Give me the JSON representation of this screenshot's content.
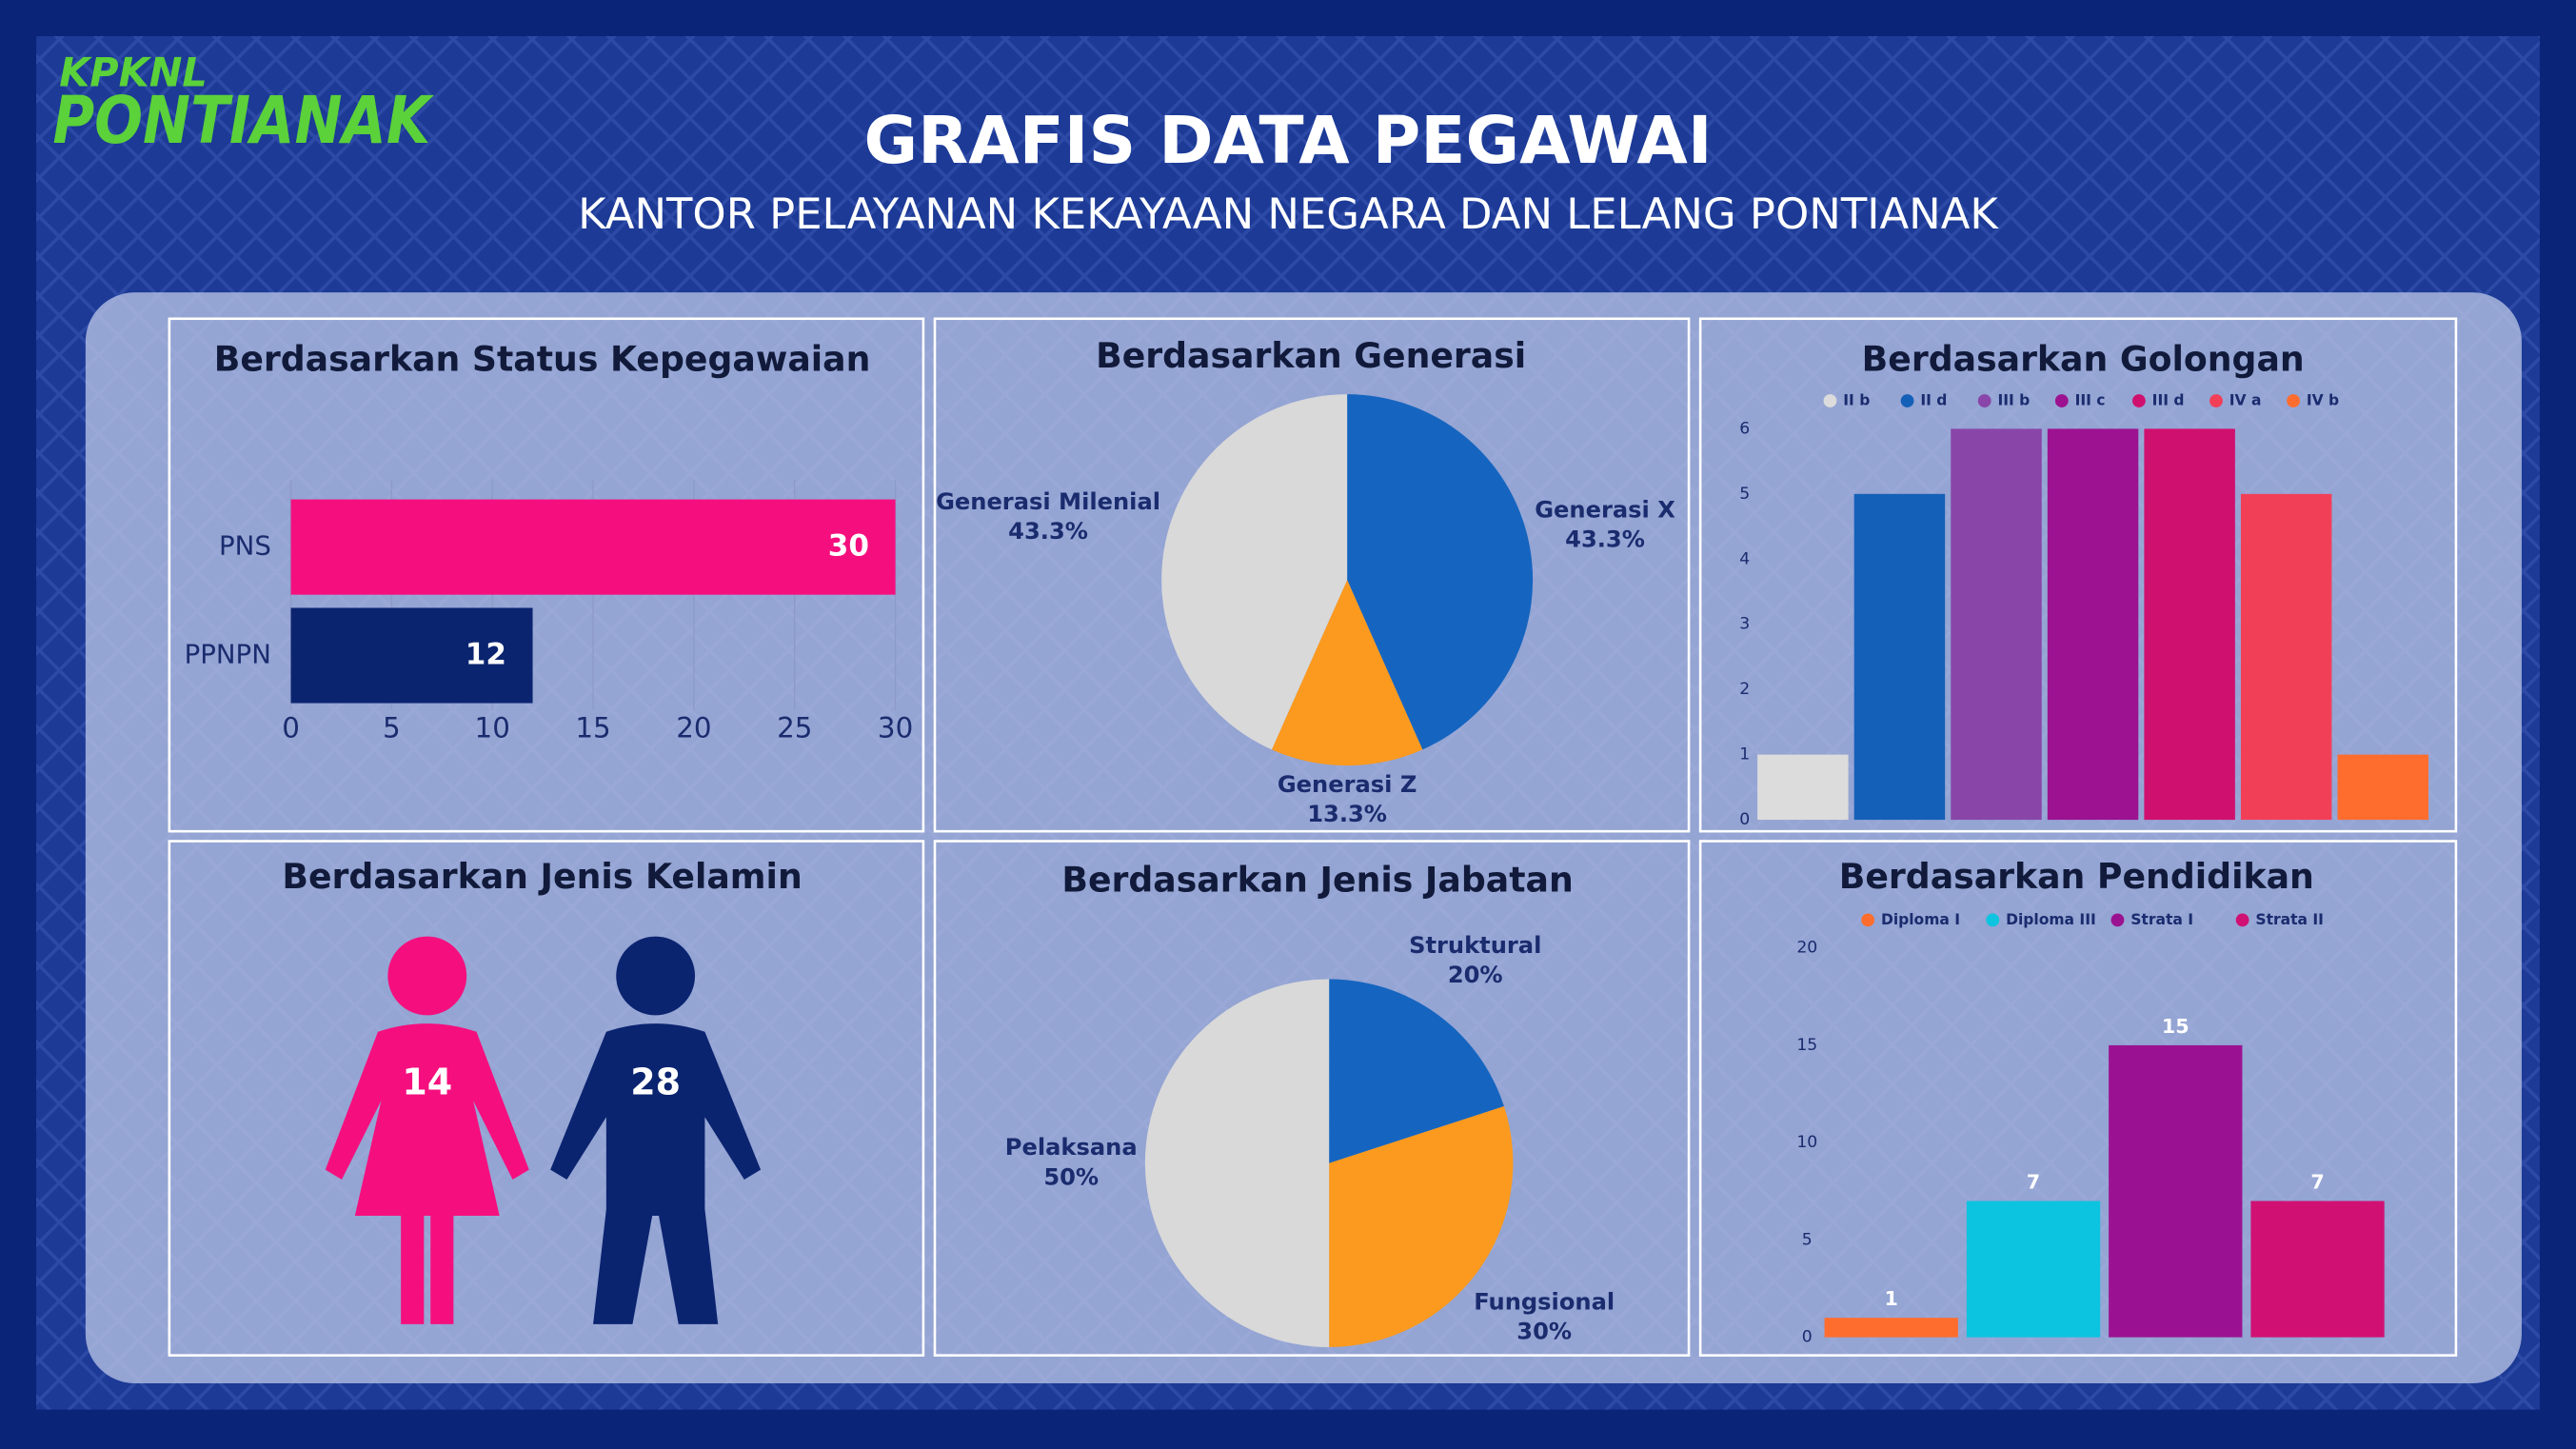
{
  "header": {
    "logo_top": "KPKNL",
    "logo_bottom": "PONTIANAK",
    "title": "GRAFIS DATA PEGAWAI",
    "subtitle": "KANTOR PELAYANAN KEKAYAAN NEGARA DAN LELANG PONTIANAK"
  },
  "chart_data": [
    {
      "type": "hbar",
      "title": "Berdasarkan Status Kepegawaian",
      "categories": [
        "PNS",
        "PPNPN"
      ],
      "values": [
        30,
        12
      ],
      "colors": [
        "#f50f7e",
        "#0b2470"
      ],
      "xlim": [
        0,
        30
      ],
      "xticks": [
        0,
        5,
        10,
        15,
        20,
        25,
        30
      ],
      "grid": true
    },
    {
      "type": "pie",
      "title": "Berdasarkan Generasi",
      "categories": [
        "Generasi X",
        "Generasi Z",
        "Generasi Milenial"
      ],
      "values": [
        43.3,
        13.3,
        43.3
      ],
      "value_labels": [
        "43.3%",
        "13.3%",
        "43.3%"
      ],
      "colors": [
        "#1565c0",
        "#fb9a1e",
        "#d9d9d9"
      ]
    },
    {
      "type": "bar",
      "title": "Berdasarkan Golongan",
      "categories": [
        "II b",
        "II d",
        "III b",
        "III c",
        "III d",
        "IV a",
        "IV b"
      ],
      "values": [
        1,
        5,
        6,
        6,
        6,
        5,
        1
      ],
      "colors": [
        "#dcdcdc",
        "#1460b8",
        "#8a45a8",
        "#9c1290",
        "#d0106e",
        "#f23f58",
        "#ff6d2e"
      ],
      "ylim": [
        0,
        6
      ],
      "yticks": [
        0,
        1,
        2,
        3,
        4,
        5,
        6
      ],
      "value_labels_shown": false
    },
    {
      "type": "icon",
      "title": "Berdasarkan Jenis Kelamin",
      "values": [
        14,
        28
      ],
      "colors": [
        "#f50f7e",
        "#0b2470"
      ]
    },
    {
      "type": "pie",
      "title": "Berdasarkan Jenis Jabatan",
      "categories": [
        "Struktural",
        "Fungsional",
        "Pelaksana"
      ],
      "values": [
        20,
        30,
        50
      ],
      "value_labels": [
        "20%",
        "30%",
        "50%"
      ],
      "colors": [
        "#1565c0",
        "#fb9a1e",
        "#d9d9d9"
      ]
    },
    {
      "type": "bar",
      "title": "Berdasarkan Pendidikan",
      "categories": [
        "Diploma I",
        "Diploma III",
        "Strata I",
        "Strata II"
      ],
      "values": [
        1,
        7,
        15,
        7
      ],
      "colors": [
        "#ff6d2e",
        "#0cc4e0",
        "#9a1291",
        "#d01173"
      ],
      "ylim": [
        0,
        20
      ],
      "yticks": [
        0,
        5,
        10,
        15,
        20
      ],
      "value_labels_shown": true
    }
  ]
}
